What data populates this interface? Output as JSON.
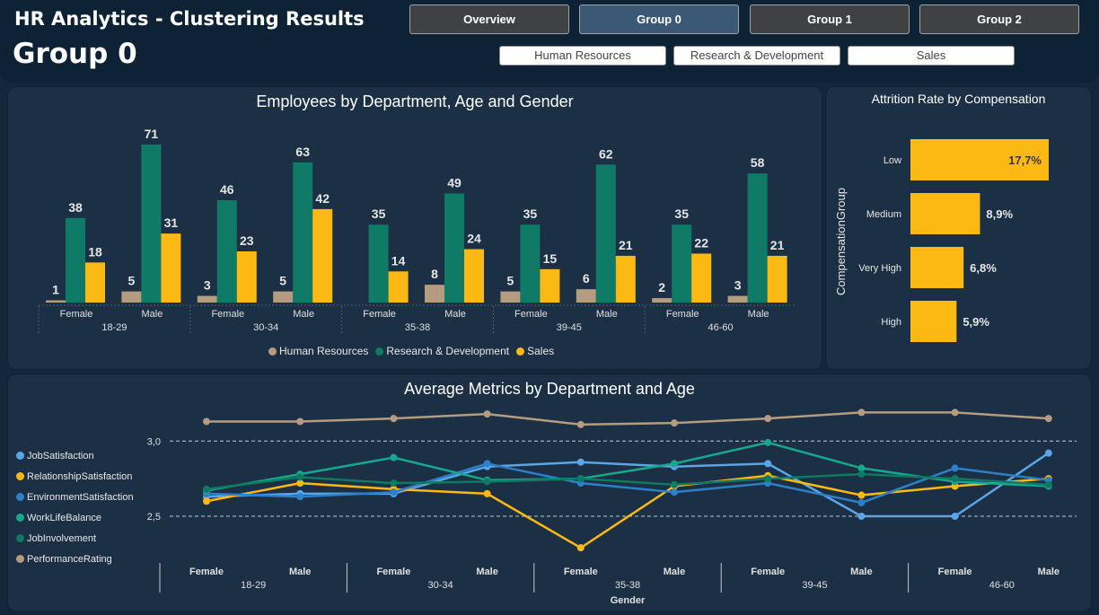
{
  "header": {
    "title": "HR Analytics - Clustering Results",
    "group_title": "Group 0",
    "tabs": [
      "Overview",
      "Group 0",
      "Group 1",
      "Group 2"
    ],
    "active_tab": "Group 0",
    "departments": [
      "Human Resources",
      "Research & Development",
      "Sales"
    ]
  },
  "colors": {
    "hr": "#b59b7f",
    "rd": "#0f7a66",
    "sales": "#fdb913",
    "bar_orange": "#fdb913"
  },
  "chart_data": [
    {
      "type": "bar",
      "title": "Employees by Department, Age and Gender",
      "age_groups": [
        "18-29",
        "30-34",
        "35-38",
        "39-45",
        "46-60"
      ],
      "genders": [
        "Female",
        "Male"
      ],
      "categories": [
        "Female",
        "Male",
        "Female",
        "Male",
        "Female",
        "Male",
        "Female",
        "Male",
        "Female",
        "Male"
      ],
      "series": [
        {
          "name": "Human Resources",
          "color": "#b59b7f",
          "values": [
            1,
            5,
            3,
            5,
            null,
            8,
            5,
            6,
            2,
            3
          ]
        },
        {
          "name": "Research & Development",
          "color": "#0f7a66",
          "values": [
            38,
            71,
            46,
            63,
            35,
            49,
            35,
            62,
            35,
            58
          ]
        },
        {
          "name": "Sales",
          "color": "#fdb913",
          "values": [
            18,
            31,
            23,
            42,
            14,
            24,
            15,
            21,
            22,
            21
          ]
        }
      ],
      "legend_position": "bottom"
    },
    {
      "type": "bar",
      "orientation": "horizontal",
      "title": "Attrition Rate by Compensation",
      "ylabel": "CompensationGroup",
      "categories": [
        "Low",
        "Medium",
        "Very High",
        "High"
      ],
      "values": [
        17.7,
        8.9,
        6.8,
        5.9
      ],
      "labels": [
        "17,7%",
        "8,9%",
        "6,8%",
        "5,9%"
      ]
    },
    {
      "type": "line",
      "title": "Average Metrics by Department and Age",
      "xlabel": "Gender",
      "age_groups": [
        "18-29",
        "30-34",
        "35-38",
        "39-45",
        "46-60"
      ],
      "categories": [
        "Female",
        "Male",
        "Female",
        "Male",
        "Female",
        "Male",
        "Female",
        "Male",
        "Female",
        "Male"
      ],
      "y_ticks": [
        "2,5",
        "3,0"
      ],
      "ylim": [
        2.05,
        3.25
      ],
      "series": [
        {
          "name": "JobSatisfaction",
          "color": "#5aa6e6",
          "values": [
            2.63,
            2.65,
            2.65,
            2.83,
            2.86,
            2.83,
            2.85,
            2.5,
            2.5,
            2.92
          ]
        },
        {
          "name": "RelationshipSatisfaction",
          "color": "#fdb913",
          "values": [
            2.6,
            2.72,
            2.68,
            2.65,
            2.29,
            2.7,
            2.77,
            2.64,
            2.7,
            2.75
          ]
        },
        {
          "name": "EnvironmentSatisfaction",
          "color": "#2d7fc8",
          "values": [
            2.65,
            2.63,
            2.66,
            2.85,
            2.72,
            2.66,
            2.72,
            2.59,
            2.82,
            2.74
          ]
        },
        {
          "name": "WorkLifeBalance",
          "color": "#15a88e",
          "values": [
            2.67,
            2.78,
            2.89,
            2.74,
            2.75,
            2.85,
            2.99,
            2.82,
            2.73,
            2.7
          ]
        },
        {
          "name": "JobInvolvement",
          "color": "#0e7a63",
          "values": [
            2.68,
            2.76,
            2.72,
            2.73,
            2.75,
            2.71,
            2.75,
            2.78,
            2.75,
            2.71
          ]
        },
        {
          "name": "PerformanceRating",
          "color": "#b59b7f",
          "values": [
            3.13,
            3.13,
            3.15,
            3.18,
            3.11,
            3.12,
            3.15,
            3.19,
            3.19,
            3.15
          ]
        }
      ],
      "grid": "dashed at 2,5 and 3,0",
      "legend_position": "left"
    }
  ]
}
